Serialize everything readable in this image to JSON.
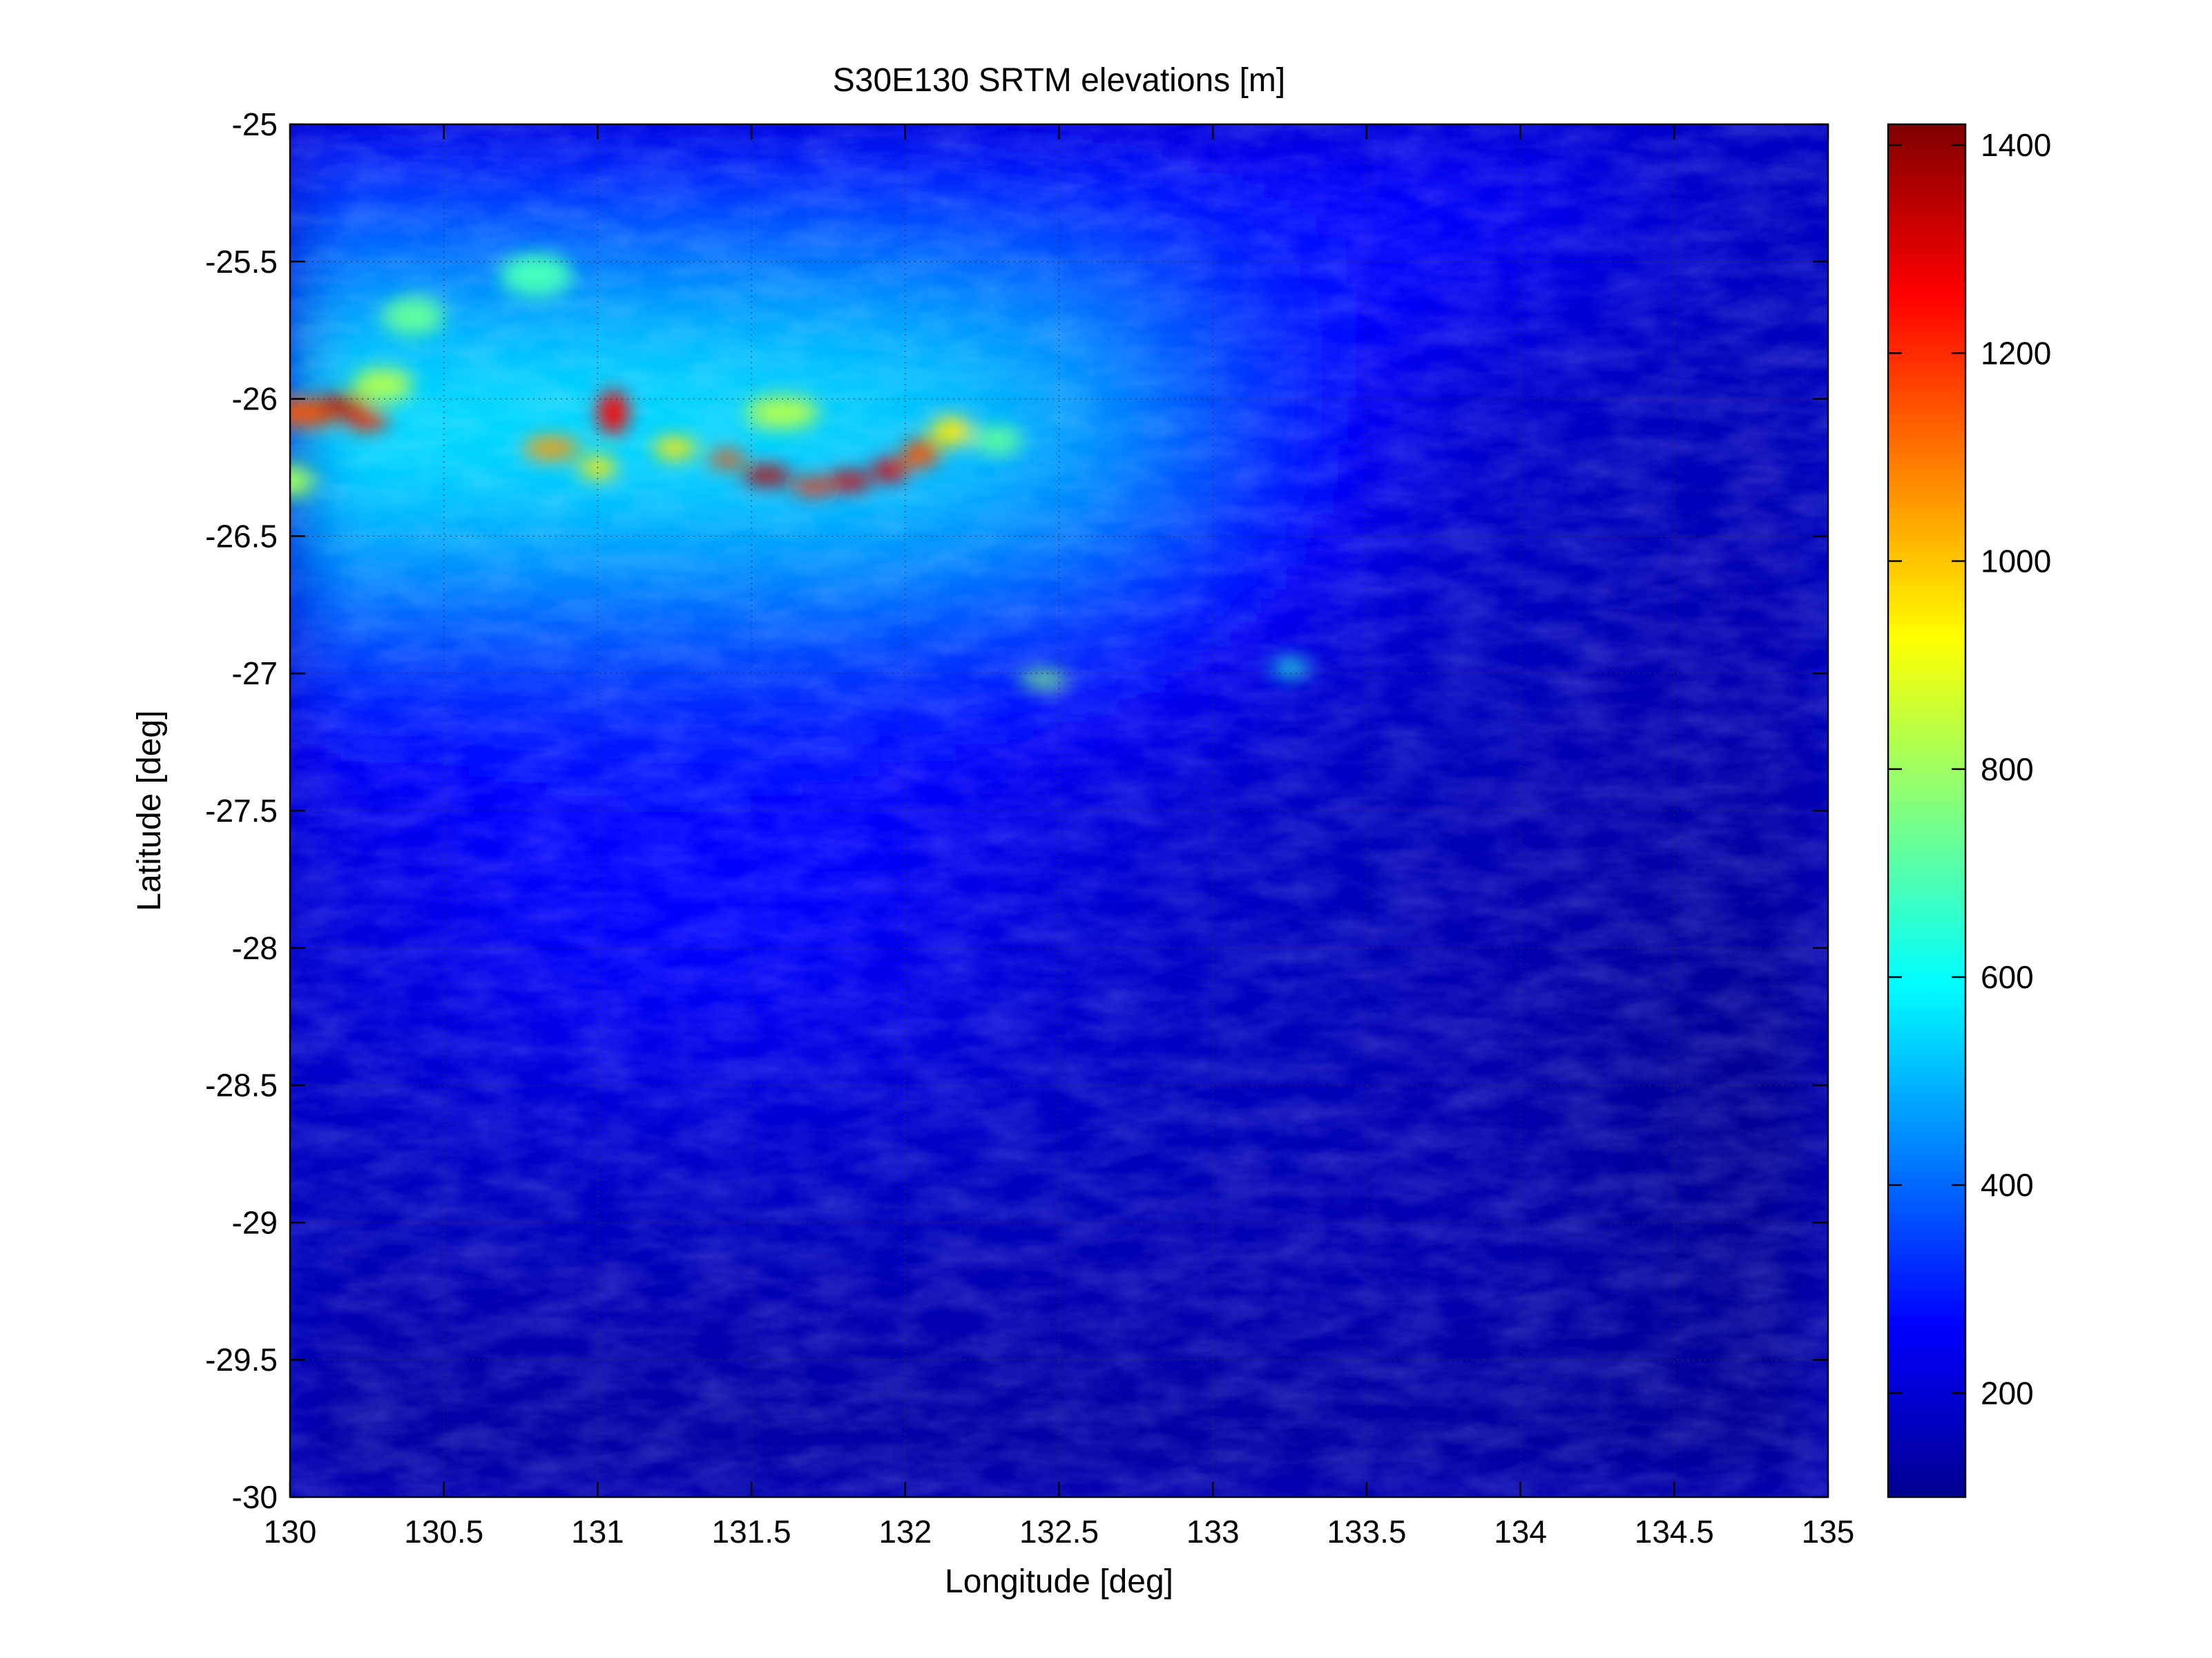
{
  "chart_data": {
    "type": "heatmap",
    "title": "S30E130 SRTM elevations [m]",
    "xlabel": "Longitude [deg]",
    "ylabel": "Latitude [deg]",
    "xlim": [
      130,
      135
    ],
    "ylim": [
      -30,
      -25
    ],
    "xticks": [
      "130",
      "130.5",
      "131",
      "131.5",
      "132",
      "132.5",
      "133",
      "133.5",
      "134",
      "134.5",
      "135"
    ],
    "yticks": [
      "-25",
      "-25.5",
      "-26",
      "-26.5",
      "-27",
      "-27.5",
      "-28",
      "-28.5",
      "-29",
      "-29.5",
      "-30"
    ],
    "grid": true,
    "colormap": "jet",
    "colorbar": {
      "label": "",
      "range": [
        100,
        1420
      ],
      "ticks": [
        200,
        400,
        600,
        800,
        1000,
        1200,
        1400
      ],
      "tick_labels": [
        "200",
        "400",
        "600",
        "800",
        "1000",
        "1200",
        "1400"
      ]
    },
    "features": [
      {
        "description": "east-west ridge of highest elevations",
        "lon_range": [
          130.0,
          132.3
        ],
        "lat_range": [
          -26.4,
          -25.95
        ],
        "elevation_max": 1400
      },
      {
        "description": "elevated plateau",
        "lon_range": [
          130.0,
          133.0
        ],
        "lat_range": [
          -27.2,
          -25.0
        ],
        "elevation_typical": 550
      },
      {
        "description": "low basin",
        "lon_range": [
          133.5,
          135.0
        ],
        "lat_range": [
          -30.0,
          -26.5
        ],
        "elevation_typical": 160
      }
    ]
  }
}
